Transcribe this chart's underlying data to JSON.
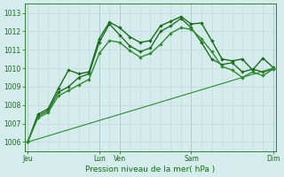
{
  "title": "",
  "xlabel": "Pression niveau de la mer( hPa )",
  "ylabel": "",
  "ylim": [
    1005.5,
    1013.5
  ],
  "yticks": [
    1006,
    1007,
    1008,
    1009,
    1010,
    1011,
    1012,
    1013
  ],
  "background_color": "#d4ecec",
  "grid_major_color": "#aac8c8",
  "grid_minor_color": "#bfd8d8",
  "line_color": "#1a6b1a",
  "xlabel_fontsize": 6.5,
  "ytick_fontsize": 5.5,
  "xtick_fontsize": 5.5,
  "series": [
    {
      "x": [
        0,
        1,
        2,
        3,
        4,
        5,
        6,
        7,
        8,
        9,
        10,
        11,
        12,
        13,
        14,
        15,
        16,
        17,
        18,
        19,
        20,
        21,
        22,
        23,
        24
      ],
      "y": [
        1006.0,
        1007.5,
        1007.8,
        1008.9,
        1009.9,
        1009.7,
        1009.8,
        1011.6,
        1012.5,
        1012.2,
        1011.7,
        1011.4,
        1011.5,
        1012.3,
        1012.55,
        1012.8,
        1012.4,
        1012.45,
        1011.5,
        1010.5,
        1010.4,
        1010.5,
        1009.9,
        1010.55,
        1010.05
      ],
      "color": "#1a6b1a",
      "marker": "D",
      "markersize": 2.2,
      "linewidth": 1.0
    },
    {
      "x": [
        0,
        1,
        2,
        3,
        4,
        5,
        6,
        7,
        8,
        9,
        10,
        11,
        12,
        13,
        14,
        15,
        16,
        17,
        18,
        19,
        20,
        21,
        22,
        23,
        24
      ],
      "y": [
        1006.0,
        1007.4,
        1007.7,
        1008.7,
        1009.0,
        1009.5,
        1009.7,
        1011.4,
        1012.4,
        1011.8,
        1011.2,
        1010.9,
        1011.1,
        1012.0,
        1012.3,
        1012.7,
        1012.2,
        1011.4,
        1010.5,
        1010.2,
        1010.3,
        1009.8,
        1009.95,
        1009.8,
        1009.95
      ],
      "color": "#246e24",
      "marker": "D",
      "markersize": 2.2,
      "linewidth": 1.0
    },
    {
      "x": [
        0,
        1,
        2,
        3,
        4,
        5,
        6,
        7,
        8,
        9,
        10,
        11,
        12,
        13,
        14,
        15,
        16,
        17,
        18,
        19,
        20,
        21,
        22,
        23,
        24
      ],
      "y": [
        1006.0,
        1007.3,
        1007.6,
        1008.5,
        1008.8,
        1009.1,
        1009.4,
        1010.8,
        1011.5,
        1011.4,
        1010.95,
        1010.6,
        1010.8,
        1011.3,
        1011.9,
        1012.2,
        1012.1,
        1011.6,
        1010.9,
        1010.1,
        1009.9,
        1009.5,
        1009.8,
        1009.6,
        1009.95
      ],
      "color": "#2e8b2e",
      "marker": "D",
      "markersize": 2.2,
      "linewidth": 1.0
    },
    {
      "x": [
        0,
        24
      ],
      "y": [
        1006.0,
        1010.0
      ],
      "color": "#2e8b2e",
      "marker": "D",
      "markersize": 2.2,
      "linewidth": 0.8,
      "linestyle": "-"
    }
  ],
  "major_xtick_positions": [
    0,
    7,
    9,
    16,
    24
  ],
  "major_xtick_labels": [
    "Jeu",
    "Lun",
    "Ven",
    "Sam",
    "Dim"
  ],
  "vline_major_positions": [
    0,
    7,
    9,
    16,
    24
  ],
  "xlim": [
    -0.3,
    24.3
  ],
  "num_minor_x": 24
}
